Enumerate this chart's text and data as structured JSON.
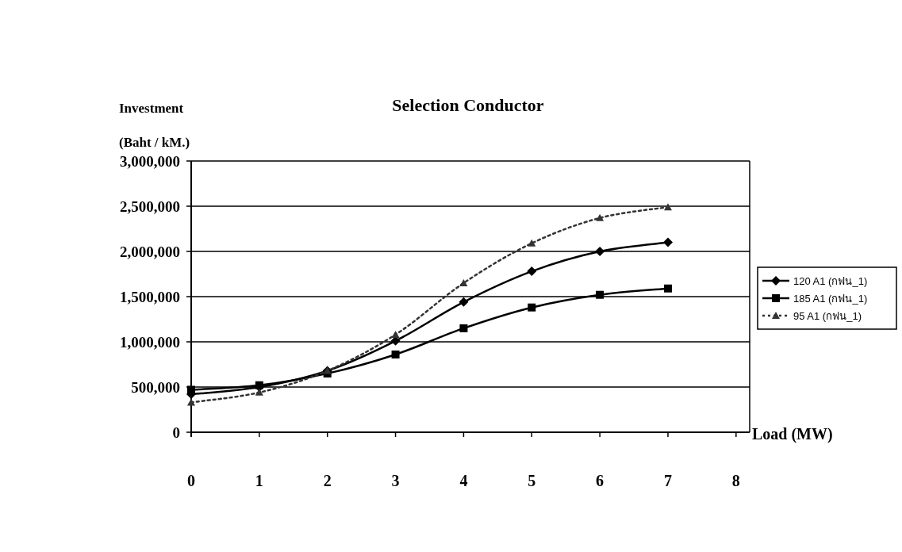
{
  "chart_data": {
    "type": "line",
    "title": "Selection Conductor",
    "ylabel": "Investment\n(Baht / kM.)",
    "xlabel": "Load (MW)",
    "x": [
      0,
      1,
      2,
      3,
      4,
      5,
      6,
      7
    ],
    "series": [
      {
        "name": "120 A1 (กฟน_1)",
        "color": "#000000",
        "marker": "diamond",
        "line_style": "solid",
        "values": [
          420000,
          500000,
          680000,
          1010000,
          1440000,
          1780000,
          2000000,
          2100000
        ]
      },
      {
        "name": "185 A1 (กฟน_1)",
        "color": "#000000",
        "marker": "square",
        "line_style": "solid",
        "values": [
          470000,
          520000,
          650000,
          860000,
          1150000,
          1380000,
          1520000,
          1590000
        ]
      },
      {
        "name": "95 A1 (กฟน_1)",
        "color": "#333333",
        "marker": "triangle",
        "line_style": "dotted",
        "values": [
          330000,
          440000,
          680000,
          1080000,
          1650000,
          2090000,
          2370000,
          2490000
        ]
      }
    ],
    "xlim": [
      0,
      8.2
    ],
    "xticks": [
      0,
      1,
      2,
      3,
      4,
      5,
      6,
      7,
      8
    ],
    "ylim": [
      0,
      3000000
    ],
    "yticks": [
      {
        "value": 0,
        "label": "0"
      },
      {
        "value": 500000,
        "label": "500,000"
      },
      {
        "value": 1000000,
        "label": "1,000,000"
      },
      {
        "value": 1500000,
        "label": "1,500,000"
      },
      {
        "value": 2000000,
        "label": "2,000,000"
      },
      {
        "value": 2500000,
        "label": "2,500,000"
      },
      {
        "value": 3000000,
        "label": "3,000,000"
      }
    ],
    "grid": "y",
    "legend": "right"
  }
}
